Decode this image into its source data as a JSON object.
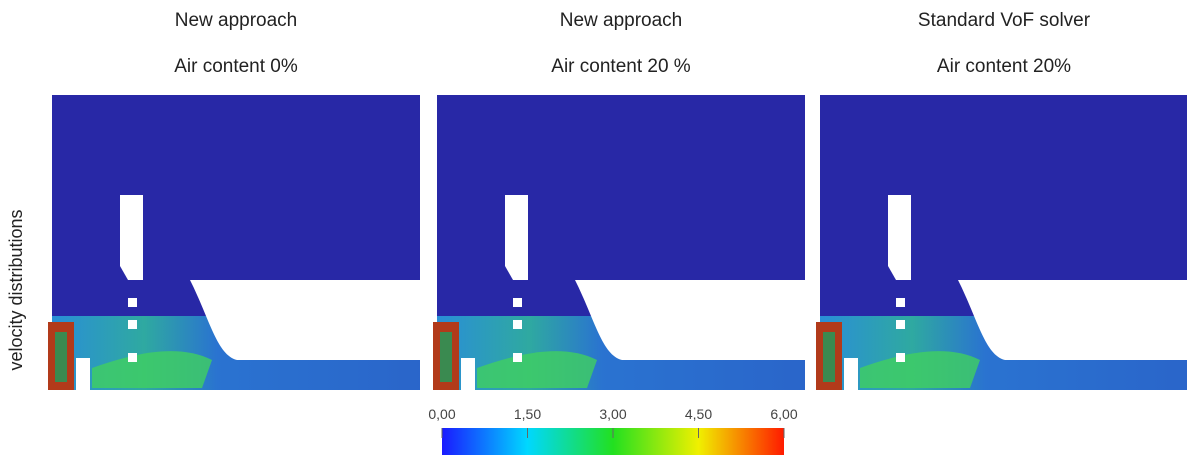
{
  "panels": [
    {
      "title": "New approach",
      "subtitle": "Air content 0%"
    },
    {
      "title": "New approach",
      "subtitle": "Air content 20 %"
    },
    {
      "title": "Standard VoF solver",
      "subtitle": "Air content 20%"
    }
  ],
  "y_label": "velocity distributions",
  "colorbar": {
    "lim": [
      0,
      6
    ],
    "ticks": [
      {
        "value": 0,
        "label": "0,00"
      },
      {
        "value": 1.5,
        "label": "1,50"
      },
      {
        "value": 3,
        "label": "3,00"
      },
      {
        "value": 4.5,
        "label": "4,50"
      },
      {
        "value": 6,
        "label": "6,00"
      }
    ],
    "colors": [
      "#1a1aff",
      "#00d8ff",
      "#22e020",
      "#f0f000",
      "#ff1a00"
    ]
  }
}
